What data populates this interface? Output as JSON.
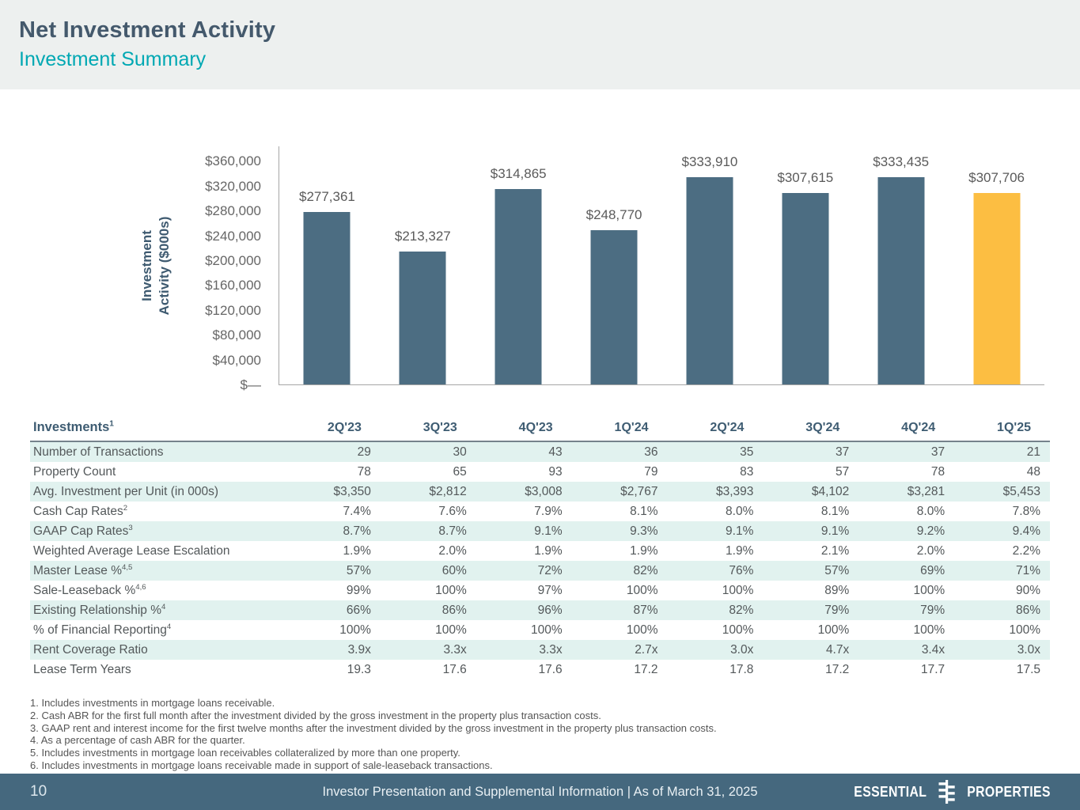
{
  "header": {
    "title": "Net Investment Activity",
    "subtitle": "Investment Summary"
  },
  "chart_data": {
    "type": "bar",
    "categories": [
      "2Q'23",
      "3Q'23",
      "4Q'23",
      "1Q'24",
      "2Q'24",
      "3Q'24",
      "4Q'24",
      "1Q'25"
    ],
    "values": [
      277361,
      213327,
      314865,
      248770,
      333910,
      307615,
      333435,
      307706
    ],
    "value_labels": [
      "$277,361",
      "$213,327",
      "$314,865",
      "$248,770",
      "$333,910",
      "$307,615",
      "$333,435",
      "$307,706"
    ],
    "title": "",
    "xlabel": "",
    "ylabel": "Investment Activity ($000s)",
    "ylabel_lines": [
      "Investment",
      "Activity ($000s)"
    ],
    "yticks": [
      {
        "value": 0,
        "label": "$—"
      },
      {
        "value": 40000,
        "label": "$40,000"
      },
      {
        "value": 80000,
        "label": "$80,000"
      },
      {
        "value": 120000,
        "label": "$120,000"
      },
      {
        "value": 160000,
        "label": "$160,000"
      },
      {
        "value": 200000,
        "label": "$200,000"
      },
      {
        "value": 240000,
        "label": "$240,000"
      },
      {
        "value": 280000,
        "label": "$280,000"
      },
      {
        "value": 320000,
        "label": "$320,000"
      },
      {
        "value": 360000,
        "label": "$360,000"
      }
    ],
    "ylim": [
      0,
      382000
    ],
    "grid": false,
    "legend": "none",
    "bar_color": "#4c6d82",
    "highlight_color": "#fcbe42",
    "highlight_index": 7
  },
  "table": {
    "corner_label": "Investments",
    "corner_sup": "1",
    "columns": [
      "2Q'23",
      "3Q'23",
      "4Q'23",
      "1Q'24",
      "2Q'24",
      "3Q'24",
      "4Q'24",
      "1Q'25"
    ],
    "rows": [
      {
        "label": "Number of Transactions",
        "sup": "",
        "values": [
          "29",
          "30",
          "43",
          "36",
          "35",
          "37",
          "37",
          "21"
        ]
      },
      {
        "label": "Property Count",
        "sup": "",
        "values": [
          "78",
          "65",
          "93",
          "79",
          "83",
          "57",
          "78",
          "48"
        ]
      },
      {
        "label": "Avg. Investment per Unit (in 000s)",
        "sup": "",
        "values": [
          "$3,350",
          "$2,812",
          "$3,008",
          "$2,767",
          "$3,393",
          "$4,102",
          "$3,281",
          "$5,453"
        ]
      },
      {
        "label": "Cash Cap Rates",
        "sup": "2",
        "values": [
          "7.4%",
          "7.6%",
          "7.9%",
          "8.1%",
          "8.0%",
          "8.1%",
          "8.0%",
          "7.8%"
        ]
      },
      {
        "label": "GAAP Cap Rates",
        "sup": "3",
        "values": [
          "8.7%",
          "8.7%",
          "9.1%",
          "9.3%",
          "9.1%",
          "9.1%",
          "9.2%",
          "9.4%"
        ]
      },
      {
        "label": "Weighted Average Lease Escalation",
        "sup": "",
        "values": [
          "1.9%",
          "2.0%",
          "1.9%",
          "1.9%",
          "1.9%",
          "2.1%",
          "2.0%",
          "2.2%"
        ]
      },
      {
        "label": "Master Lease %",
        "sup": "4,5",
        "values": [
          "57%",
          "60%",
          "72%",
          "82%",
          "76%",
          "57%",
          "69%",
          "71%"
        ]
      },
      {
        "label": "Sale-Leaseback %",
        "sup": "4,6",
        "values": [
          "99%",
          "100%",
          "97%",
          "100%",
          "100%",
          "89%",
          "100%",
          "90%"
        ]
      },
      {
        "label": "Existing Relationship %",
        "sup": "4",
        "values": [
          "66%",
          "86%",
          "96%",
          "87%",
          "82%",
          "79%",
          "79%",
          "86%"
        ]
      },
      {
        "label": "% of Financial Reporting",
        "sup": "4",
        "values": [
          "100%",
          "100%",
          "100%",
          "100%",
          "100%",
          "100%",
          "100%",
          "100%"
        ]
      },
      {
        "label": "Rent Coverage Ratio",
        "sup": "",
        "values": [
          "3.9x",
          "3.3x",
          "3.3x",
          "2.7x",
          "3.0x",
          "4.7x",
          "3.4x",
          "3.0x"
        ]
      },
      {
        "label": "Lease Term Years",
        "sup": "",
        "values": [
          "19.3",
          "17.6",
          "17.6",
          "17.2",
          "17.8",
          "17.2",
          "17.7",
          "17.5"
        ]
      }
    ]
  },
  "footnotes": [
    "1. Includes investments in mortgage loans receivable.",
    "2. Cash ABR for the first full month after the investment divided by the gross investment in the property plus transaction costs.",
    "3. GAAP rent and interest income for the first twelve months after the investment divided by the gross investment in the property plus transaction costs.",
    "4. As a percentage of cash ABR for the quarter.",
    "5. Includes investments in mortgage loan receivables collateralized by more than one property.",
    "6. Includes investments in mortgage loans receivable made in support of sale-leaseback transactions."
  ],
  "footer": {
    "page_number": "10",
    "caption": "Investor Presentation and Supplemental Information |  As of March 31, 2025",
    "logo_word_left": "ESSENTIAL",
    "logo_word_right": "PROPERTIES"
  },
  "colors": {
    "header_background": "#edf0ef",
    "title": "#44596c",
    "subtitle_teal": "#00a8b3",
    "bar_blue": "#4c6d82",
    "bar_yellow": "#fcbe42",
    "table_stripe": "#e1f2ef",
    "footer_background": "#45687e"
  }
}
